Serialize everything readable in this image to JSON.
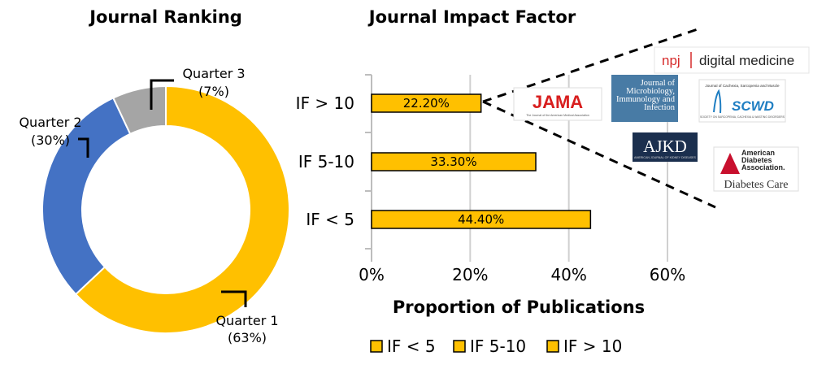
{
  "colors": {
    "q1": "#FFC000",
    "q2": "#4472C4",
    "q3": "#A5A5A5",
    "bar": "#FFC000",
    "grid": "#D0D0D0"
  },
  "chart_data": [
    {
      "type": "pie",
      "title": "Journal Ranking",
      "slices": [
        {
          "label": "Quarter 1",
          "value_label": "(63%)",
          "value": 63,
          "color": "#FFC000"
        },
        {
          "label": "Quarter 2",
          "value_label": "(30%)",
          "value": 30,
          "color": "#4472C4"
        },
        {
          "label": "Quarter 3",
          "value_label": "(7%)",
          "value": 7,
          "color": "#A5A5A5"
        }
      ]
    },
    {
      "type": "bar",
      "orientation": "horizontal",
      "title": "Journal Impact Factor",
      "xlabel": "Proportion of Publications",
      "categories": [
        "IF > 10",
        "IF 5-10",
        "IF < 5"
      ],
      "values": [
        22.2,
        33.3,
        44.4
      ],
      "data_labels": [
        "22.20%",
        "33.30%",
        "44.40%"
      ],
      "xlim": [
        0,
        60
      ],
      "xticks": [
        "0%",
        "20%",
        "40%",
        "60%"
      ],
      "grid": true,
      "legend": {
        "position": "bottom",
        "entries": [
          "IF < 5",
          "IF 5-10",
          "IF > 10"
        ]
      }
    }
  ],
  "logos": [
    {
      "name": "npj-digital-medicine",
      "text_a": "npj",
      "text_b": "digital medicine"
    },
    {
      "name": "jama",
      "text": "JAMA",
      "subtext": "The Journal of the American Medical Association"
    },
    {
      "name": "microbiology-immunology-infection",
      "text": "Journal of Microbiology, Immunology and Infection"
    },
    {
      "name": "scwd",
      "header": "Journal of Cachexia, Sarcopenia and Muscle",
      "text": "SCWD",
      "subtext": "SOCIETY ON SARCOPENIA, CACHEXIA & WASTING DISORDERS"
    },
    {
      "name": "ajkd",
      "text": "AJKD",
      "subtext": "AMERICAN JOURNAL OF KIDNEY DISEASES"
    },
    {
      "name": "diabetes-care",
      "text_a": "American Diabetes Association.",
      "text_b": "Diabetes Care"
    }
  ]
}
